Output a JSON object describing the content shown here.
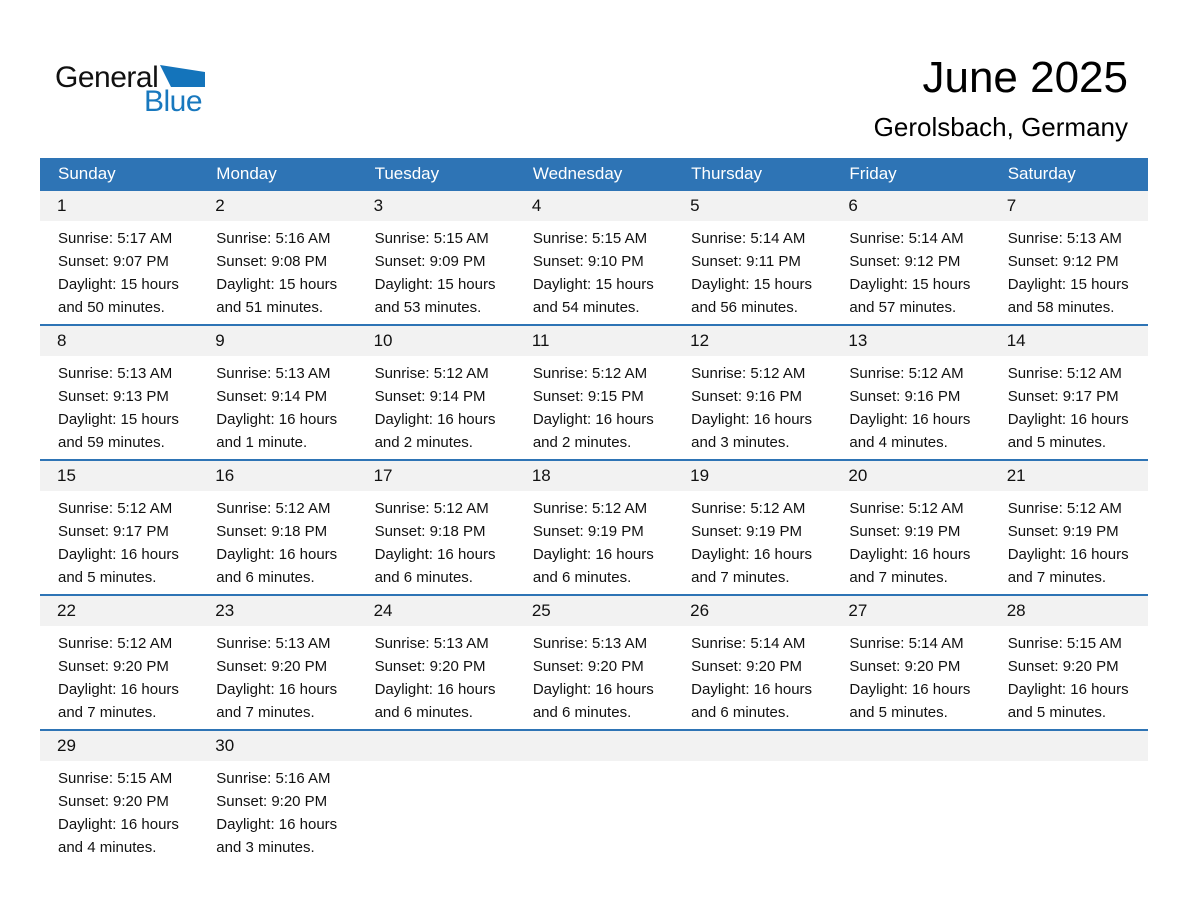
{
  "logo": {
    "general": "General",
    "blue": "Blue"
  },
  "header": {
    "title": "June 2025",
    "subtitle": "Gerolsbach, Germany"
  },
  "colors": {
    "header_blue": "#2E74B5",
    "row_border_blue": "#2E74B5",
    "band_gray": "#F2F2F2",
    "logo_blue": "#1878BE",
    "logo_triangle_blue": "#1474BB"
  },
  "calendar": {
    "weekdays": [
      "Sunday",
      "Monday",
      "Tuesday",
      "Wednesday",
      "Thursday",
      "Friday",
      "Saturday"
    ],
    "weeks": [
      [
        {
          "day": "1",
          "sunrise": "Sunrise: 5:17 AM",
          "sunset": "Sunset: 9:07 PM",
          "daylight1": "Daylight: 15 hours",
          "daylight2": "and 50 minutes."
        },
        {
          "day": "2",
          "sunrise": "Sunrise: 5:16 AM",
          "sunset": "Sunset: 9:08 PM",
          "daylight1": "Daylight: 15 hours",
          "daylight2": "and 51 minutes."
        },
        {
          "day": "3",
          "sunrise": "Sunrise: 5:15 AM",
          "sunset": "Sunset: 9:09 PM",
          "daylight1": "Daylight: 15 hours",
          "daylight2": "and 53 minutes."
        },
        {
          "day": "4",
          "sunrise": "Sunrise: 5:15 AM",
          "sunset": "Sunset: 9:10 PM",
          "daylight1": "Daylight: 15 hours",
          "daylight2": "and 54 minutes."
        },
        {
          "day": "5",
          "sunrise": "Sunrise: 5:14 AM",
          "sunset": "Sunset: 9:11 PM",
          "daylight1": "Daylight: 15 hours",
          "daylight2": "and 56 minutes."
        },
        {
          "day": "6",
          "sunrise": "Sunrise: 5:14 AM",
          "sunset": "Sunset: 9:12 PM",
          "daylight1": "Daylight: 15 hours",
          "daylight2": "and 57 minutes."
        },
        {
          "day": "7",
          "sunrise": "Sunrise: 5:13 AM",
          "sunset": "Sunset: 9:12 PM",
          "daylight1": "Daylight: 15 hours",
          "daylight2": "and 58 minutes."
        }
      ],
      [
        {
          "day": "8",
          "sunrise": "Sunrise: 5:13 AM",
          "sunset": "Sunset: 9:13 PM",
          "daylight1": "Daylight: 15 hours",
          "daylight2": "and 59 minutes."
        },
        {
          "day": "9",
          "sunrise": "Sunrise: 5:13 AM",
          "sunset": "Sunset: 9:14 PM",
          "daylight1": "Daylight: 16 hours",
          "daylight2": "and 1 minute."
        },
        {
          "day": "10",
          "sunrise": "Sunrise: 5:12 AM",
          "sunset": "Sunset: 9:14 PM",
          "daylight1": "Daylight: 16 hours",
          "daylight2": "and 2 minutes."
        },
        {
          "day": "11",
          "sunrise": "Sunrise: 5:12 AM",
          "sunset": "Sunset: 9:15 PM",
          "daylight1": "Daylight: 16 hours",
          "daylight2": "and 2 minutes."
        },
        {
          "day": "12",
          "sunrise": "Sunrise: 5:12 AM",
          "sunset": "Sunset: 9:16 PM",
          "daylight1": "Daylight: 16 hours",
          "daylight2": "and 3 minutes."
        },
        {
          "day": "13",
          "sunrise": "Sunrise: 5:12 AM",
          "sunset": "Sunset: 9:16 PM",
          "daylight1": "Daylight: 16 hours",
          "daylight2": "and 4 minutes."
        },
        {
          "day": "14",
          "sunrise": "Sunrise: 5:12 AM",
          "sunset": "Sunset: 9:17 PM",
          "daylight1": "Daylight: 16 hours",
          "daylight2": "and 5 minutes."
        }
      ],
      [
        {
          "day": "15",
          "sunrise": "Sunrise: 5:12 AM",
          "sunset": "Sunset: 9:17 PM",
          "daylight1": "Daylight: 16 hours",
          "daylight2": "and 5 minutes."
        },
        {
          "day": "16",
          "sunrise": "Sunrise: 5:12 AM",
          "sunset": "Sunset: 9:18 PM",
          "daylight1": "Daylight: 16 hours",
          "daylight2": "and 6 minutes."
        },
        {
          "day": "17",
          "sunrise": "Sunrise: 5:12 AM",
          "sunset": "Sunset: 9:18 PM",
          "daylight1": "Daylight: 16 hours",
          "daylight2": "and 6 minutes."
        },
        {
          "day": "18",
          "sunrise": "Sunrise: 5:12 AM",
          "sunset": "Sunset: 9:19 PM",
          "daylight1": "Daylight: 16 hours",
          "daylight2": "and 6 minutes."
        },
        {
          "day": "19",
          "sunrise": "Sunrise: 5:12 AM",
          "sunset": "Sunset: 9:19 PM",
          "daylight1": "Daylight: 16 hours",
          "daylight2": "and 7 minutes."
        },
        {
          "day": "20",
          "sunrise": "Sunrise: 5:12 AM",
          "sunset": "Sunset: 9:19 PM",
          "daylight1": "Daylight: 16 hours",
          "daylight2": "and 7 minutes."
        },
        {
          "day": "21",
          "sunrise": "Sunrise: 5:12 AM",
          "sunset": "Sunset: 9:19 PM",
          "daylight1": "Daylight: 16 hours",
          "daylight2": "and 7 minutes."
        }
      ],
      [
        {
          "day": "22",
          "sunrise": "Sunrise: 5:12 AM",
          "sunset": "Sunset: 9:20 PM",
          "daylight1": "Daylight: 16 hours",
          "daylight2": "and 7 minutes."
        },
        {
          "day": "23",
          "sunrise": "Sunrise: 5:13 AM",
          "sunset": "Sunset: 9:20 PM",
          "daylight1": "Daylight: 16 hours",
          "daylight2": "and 7 minutes."
        },
        {
          "day": "24",
          "sunrise": "Sunrise: 5:13 AM",
          "sunset": "Sunset: 9:20 PM",
          "daylight1": "Daylight: 16 hours",
          "daylight2": "and 6 minutes."
        },
        {
          "day": "25",
          "sunrise": "Sunrise: 5:13 AM",
          "sunset": "Sunset: 9:20 PM",
          "daylight1": "Daylight: 16 hours",
          "daylight2": "and 6 minutes."
        },
        {
          "day": "26",
          "sunrise": "Sunrise: 5:14 AM",
          "sunset": "Sunset: 9:20 PM",
          "daylight1": "Daylight: 16 hours",
          "daylight2": "and 6 minutes."
        },
        {
          "day": "27",
          "sunrise": "Sunrise: 5:14 AM",
          "sunset": "Sunset: 9:20 PM",
          "daylight1": "Daylight: 16 hours",
          "daylight2": "and 5 minutes."
        },
        {
          "day": "28",
          "sunrise": "Sunrise: 5:15 AM",
          "sunset": "Sunset: 9:20 PM",
          "daylight1": "Daylight: 16 hours",
          "daylight2": "and 5 minutes."
        }
      ],
      [
        {
          "day": "29",
          "sunrise": "Sunrise: 5:15 AM",
          "sunset": "Sunset: 9:20 PM",
          "daylight1": "Daylight: 16 hours",
          "daylight2": "and 4 minutes."
        },
        {
          "day": "30",
          "sunrise": "Sunrise: 5:16 AM",
          "sunset": "Sunset: 9:20 PM",
          "daylight1": "Daylight: 16 hours",
          "daylight2": "and 3 minutes."
        },
        null,
        null,
        null,
        null,
        null
      ]
    ]
  }
}
